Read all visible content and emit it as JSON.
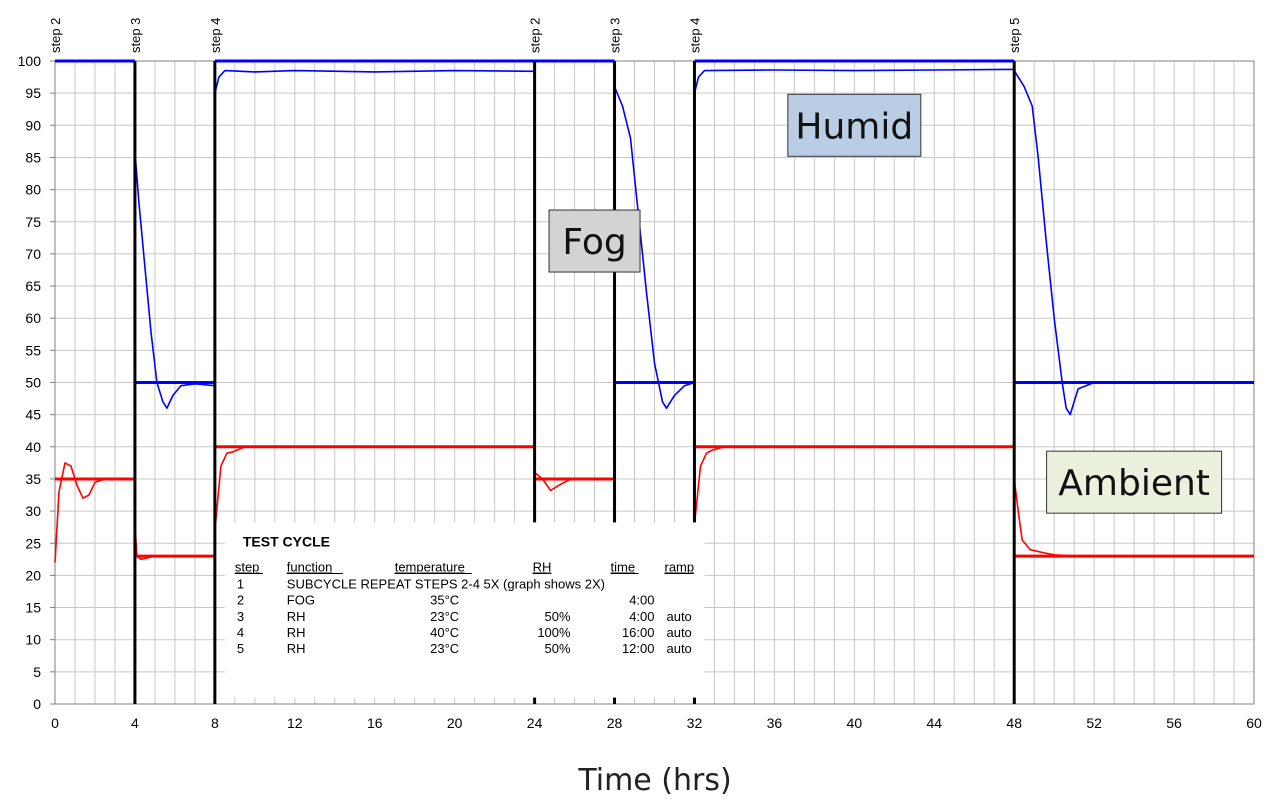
{
  "chart_data": {
    "type": "line",
    "title": "",
    "xlabel": "Time (hrs)",
    "ylabel": "",
    "xlim": [
      0,
      60
    ],
    "ylim": [
      0,
      100
    ],
    "x_ticks": [
      0,
      4,
      8,
      12,
      16,
      20,
      24,
      28,
      32,
      36,
      40,
      44,
      48,
      52,
      56,
      60
    ],
    "y_ticks": [
      0,
      5,
      10,
      15,
      20,
      25,
      30,
      35,
      40,
      45,
      50,
      55,
      60,
      65,
      70,
      75,
      80,
      85,
      90,
      95,
      100
    ],
    "grid": true,
    "step_markers": [
      {
        "x": 0,
        "label": "step 2"
      },
      {
        "x": 4,
        "label": "step 3"
      },
      {
        "x": 8,
        "label": "step 4"
      },
      {
        "x": 24,
        "label": "step 2"
      },
      {
        "x": 28,
        "label": "step 3"
      },
      {
        "x": 32,
        "label": "step 4"
      },
      {
        "x": 48,
        "label": "step 5"
      }
    ],
    "series": [
      {
        "color": "#0000ff",
        "role": "setpoint",
        "segments": [
          [
            [
              0,
              100
            ],
            [
              4,
              100
            ]
          ],
          [
            [
              4,
              50
            ],
            [
              8,
              50
            ]
          ],
          [
            [
              8,
              100
            ],
            [
              24,
              100
            ]
          ],
          [
            [
              24,
              100
            ],
            [
              28,
              100
            ]
          ],
          [
            [
              28,
              50
            ],
            [
              32,
              50
            ]
          ],
          [
            [
              32,
              100
            ],
            [
              48,
              100
            ]
          ],
          [
            [
              48,
              50
            ],
            [
              60,
              50
            ]
          ]
        ]
      },
      {
        "color": "#0000ff",
        "role": "measured",
        "segments": [
          [
            [
              4,
              86
            ],
            [
              4.2,
              78
            ],
            [
              4.5,
              68
            ],
            [
              4.8,
              58
            ],
            [
              5.1,
              50
            ],
            [
              5.4,
              47
            ],
            [
              5.6,
              46
            ],
            [
              5.9,
              48
            ],
            [
              6.3,
              49.5
            ],
            [
              7,
              49.8
            ],
            [
              8,
              49.5
            ]
          ],
          [
            [
              8,
              95
            ],
            [
              8.2,
              97.5
            ],
            [
              8.5,
              98.5
            ],
            [
              10,
              98.3
            ],
            [
              12,
              98.5
            ],
            [
              16,
              98.3
            ],
            [
              20,
              98.5
            ],
            [
              24,
              98.4
            ]
          ],
          [
            [
              28,
              96
            ],
            [
              28.4,
              93
            ],
            [
              28.8,
              88
            ],
            [
              29.2,
              76
            ],
            [
              29.6,
              64
            ],
            [
              30,
              53
            ],
            [
              30.4,
              47
            ],
            [
              30.6,
              46
            ],
            [
              31,
              48
            ],
            [
              31.5,
              49.5
            ],
            [
              32,
              50
            ]
          ],
          [
            [
              32,
              95
            ],
            [
              32.2,
              97.5
            ],
            [
              32.5,
              98.5
            ],
            [
              36,
              98.6
            ],
            [
              40,
              98.5
            ],
            [
              44,
              98.6
            ],
            [
              47.5,
              98.7
            ],
            [
              48,
              98.7
            ]
          ],
          [
            [
              48,
              98.5
            ],
            [
              48.5,
              96
            ],
            [
              48.9,
              93
            ],
            [
              49.2,
              85
            ],
            [
              49.6,
              72
            ],
            [
              50,
              60
            ],
            [
              50.4,
              50
            ],
            [
              50.6,
              46
            ],
            [
              50.8,
              45
            ],
            [
              51.2,
              49
            ],
            [
              52,
              50
            ],
            [
              56,
              50
            ],
            [
              60,
              50
            ]
          ]
        ]
      },
      {
        "color": "#ff0000",
        "role": "setpoint",
        "segments": [
          [
            [
              0,
              35
            ],
            [
              4,
              35
            ]
          ],
          [
            [
              4,
              23
            ],
            [
              8,
              23
            ]
          ],
          [
            [
              8,
              40
            ],
            [
              24,
              40
            ]
          ],
          [
            [
              24,
              35
            ],
            [
              28,
              35
            ]
          ],
          [
            [
              28,
              23
            ],
            [
              32,
              23
            ]
          ],
          [
            [
              32,
              40
            ],
            [
              48,
              40
            ]
          ],
          [
            [
              48,
              23
            ],
            [
              60,
              23
            ]
          ]
        ]
      },
      {
        "color": "#ff0000",
        "role": "measured",
        "segments": [
          [
            [
              0,
              22
            ],
            [
              0.2,
              33
            ],
            [
              0.5,
              37.5
            ],
            [
              0.8,
              37
            ],
            [
              1.1,
              34
            ],
            [
              1.4,
              32
            ],
            [
              1.7,
              32.5
            ],
            [
              2,
              34.5
            ],
            [
              2.5,
              35
            ],
            [
              4,
              35
            ]
          ],
          [
            [
              4,
              28
            ],
            [
              4.1,
              23
            ],
            [
              4.3,
              22.5
            ],
            [
              5,
              23
            ],
            [
              8,
              23
            ]
          ],
          [
            [
              8,
              27
            ],
            [
              8.3,
              37
            ],
            [
              8.6,
              39
            ],
            [
              8.9,
              39.2
            ],
            [
              9.5,
              40
            ],
            [
              24,
              40
            ]
          ],
          [
            [
              24,
              36
            ],
            [
              24.4,
              35
            ],
            [
              24.8,
              33.2
            ],
            [
              25.2,
              34
            ],
            [
              25.8,
              35
            ],
            [
              28,
              35
            ]
          ],
          [
            [
              28,
              29
            ],
            [
              28.2,
              24
            ],
            [
              28.4,
              23
            ],
            [
              32,
              23
            ]
          ],
          [
            [
              32,
              28
            ],
            [
              32.3,
              37
            ],
            [
              32.6,
              39
            ],
            [
              32.9,
              39.5
            ],
            [
              33.5,
              40
            ],
            [
              48,
              40
            ]
          ],
          [
            [
              48,
              35
            ],
            [
              48.2,
              30
            ],
            [
              48.4,
              25.5
            ],
            [
              48.8,
              24
            ],
            [
              49.5,
              23.5
            ],
            [
              50,
              23.2
            ],
            [
              51,
              23
            ],
            [
              60,
              23
            ]
          ]
        ]
      }
    ],
    "annotations": [
      {
        "text": "Fog",
        "anchor_x": 27,
        "anchor_y": 72,
        "bg": "#d3d3d3"
      },
      {
        "text": "Humid",
        "anchor_x": 40,
        "anchor_y": 90,
        "bg": "#b9cde5"
      },
      {
        "text": "Ambient",
        "anchor_x": 54,
        "anchor_y": 34.5,
        "bg": "#eaf1dd"
      }
    ],
    "test_cycle_table": {
      "title": "TEST CYCLE",
      "headers": [
        "step",
        "function",
        "temperature",
        "RH",
        "time",
        "ramp"
      ],
      "rows": [
        [
          "1",
          "SUBCYCLE REPEAT STEPS 2-4 5X (graph shows 2X)",
          "",
          "",
          "",
          ""
        ],
        [
          "2",
          "FOG",
          "35°C",
          "",
          "4:00",
          ""
        ],
        [
          "3",
          "RH",
          "23°C",
          "50%",
          "4:00",
          "auto"
        ],
        [
          "4",
          "RH",
          "40°C",
          "100%",
          "16:00",
          "auto"
        ],
        [
          "5",
          "RH",
          "23°C",
          "50%",
          "12:00",
          "auto"
        ]
      ]
    }
  }
}
